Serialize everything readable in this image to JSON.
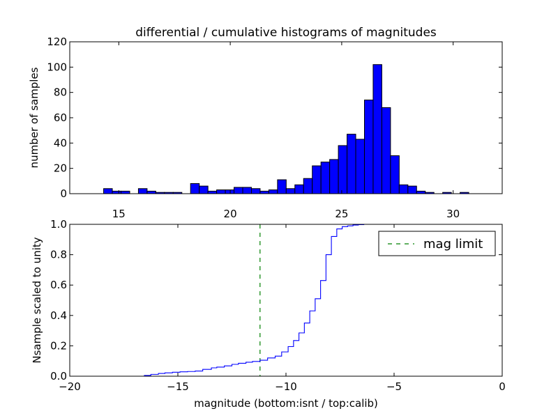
{
  "figure": {
    "title": "differential / cumulative histograms of magnitudes",
    "xlabel": "magnitude (bottom:isnt / top:calib)"
  },
  "chart_data": [
    {
      "type": "bar",
      "title": "differential / cumulative histograms of magnitudes",
      "xlabel": "",
      "ylabel": "number of samples",
      "xlim": [
        12.8,
        32.2
      ],
      "ylim": [
        0,
        120
      ],
      "xticks": [
        15,
        20,
        25,
        30
      ],
      "yticks": [
        0,
        20,
        40,
        60,
        80,
        100,
        120
      ],
      "bar_color": "#0000ff",
      "bar_edge_color": "#000000",
      "bins": [
        [
          14.32,
          14.71,
          4
        ],
        [
          14.71,
          15.1,
          2
        ],
        [
          15.1,
          15.49,
          2
        ],
        [
          15.49,
          15.88,
          0
        ],
        [
          15.88,
          16.27,
          4
        ],
        [
          16.27,
          16.66,
          2
        ],
        [
          16.66,
          17.05,
          1
        ],
        [
          17.05,
          17.44,
          1
        ],
        [
          17.44,
          17.83,
          1
        ],
        [
          17.83,
          18.22,
          0
        ],
        [
          18.22,
          18.61,
          8
        ],
        [
          18.61,
          19.0,
          6
        ],
        [
          19.0,
          19.39,
          2
        ],
        [
          19.39,
          19.78,
          3
        ],
        [
          19.78,
          20.17,
          3
        ],
        [
          20.17,
          20.56,
          5
        ],
        [
          20.56,
          20.95,
          5
        ],
        [
          20.95,
          21.34,
          4
        ],
        [
          21.34,
          21.73,
          2
        ],
        [
          21.73,
          22.12,
          3
        ],
        [
          22.12,
          22.51,
          11
        ],
        [
          22.51,
          22.9,
          4
        ],
        [
          22.9,
          23.29,
          7
        ],
        [
          23.29,
          23.68,
          12
        ],
        [
          23.68,
          24.07,
          22
        ],
        [
          24.07,
          24.46,
          25
        ],
        [
          24.46,
          24.85,
          27
        ],
        [
          24.85,
          25.24,
          38
        ],
        [
          25.24,
          25.63,
          47
        ],
        [
          25.63,
          26.02,
          43
        ],
        [
          26.02,
          26.41,
          74
        ],
        [
          26.41,
          26.8,
          102
        ],
        [
          26.8,
          27.19,
          68
        ],
        [
          27.19,
          27.58,
          30
        ],
        [
          27.58,
          27.97,
          7
        ],
        [
          27.97,
          28.36,
          6
        ],
        [
          28.36,
          28.75,
          2
        ],
        [
          28.75,
          29.14,
          1
        ],
        [
          29.14,
          29.53,
          0
        ],
        [
          29.53,
          29.92,
          1
        ],
        [
          29.92,
          30.31,
          0
        ],
        [
          30.31,
          30.7,
          1
        ]
      ]
    },
    {
      "type": "line",
      "title": "",
      "xlabel": "magnitude (bottom:isnt / top:calib)",
      "ylabel": "Nsample scaled to unity",
      "xlim": [
        -20,
        0
      ],
      "ylim": [
        0,
        1
      ],
      "xticks": [
        -20,
        -15,
        -10,
        -5,
        0
      ],
      "xtick_labels": [
        "−20",
        "−15",
        "−10",
        "−5",
        "0"
      ],
      "yticks": [
        0,
        0.2,
        0.4,
        0.6,
        0.8,
        1.0
      ],
      "ytick_labels": [
        "0.0",
        "0.2",
        "0.4",
        "0.6",
        "0.8",
        "1.0"
      ],
      "legend_position": "top-right",
      "series": [
        {
          "name": "",
          "style": "step",
          "color": "#0000ff",
          "x": [
            -20,
            -16.55,
            -16.25,
            -15.9,
            -15.6,
            -15.25,
            -14.9,
            -14.55,
            -14.2,
            -13.85,
            -13.45,
            -13.2,
            -12.85,
            -12.5,
            -12.2,
            -11.85,
            -11.55,
            -11.2,
            -10.85,
            -10.5,
            -10.2,
            -9.9,
            -9.65,
            -9.4,
            -9.15,
            -8.9,
            -8.65,
            -8.4,
            -8.15,
            -7.9,
            -7.65,
            -7.4,
            -7.15,
            -6.9,
            -6.65,
            -6.4,
            -6.15,
            0
          ],
          "y": [
            0,
            0.005,
            0.012,
            0.018,
            0.022,
            0.026,
            0.029,
            0.031,
            0.034,
            0.045,
            0.055,
            0.06,
            0.068,
            0.078,
            0.085,
            0.092,
            0.097,
            0.105,
            0.12,
            0.132,
            0.16,
            0.195,
            0.235,
            0.285,
            0.35,
            0.43,
            0.51,
            0.63,
            0.8,
            0.92,
            0.97,
            0.985,
            0.99,
            0.995,
            0.998,
            1.0,
            1.0,
            1.0
          ]
        }
      ],
      "reference_lines": [
        {
          "name": "mag limit",
          "x": -11.2,
          "color": "#008000",
          "style": "dashed"
        }
      ]
    }
  ]
}
